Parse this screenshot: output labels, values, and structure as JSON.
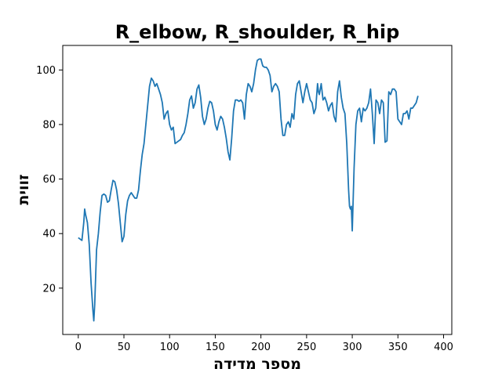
{
  "chart_data": {
    "type": "line",
    "title": "R_elbow, R_shoulder, R_hip",
    "xlabel": "מספר מדידה",
    "ylabel": "זווית",
    "xlim": [
      -17,
      409
    ],
    "ylim": [
      3,
      109
    ],
    "x_ticks": [
      0,
      50,
      100,
      150,
      200,
      250,
      300,
      350,
      400
    ],
    "y_ticks": [
      20,
      40,
      60,
      80,
      100
    ],
    "grid": false,
    "line_color": "#1f77b4",
    "series": [
      {
        "points": [
          [
            0,
            38.5
          ],
          [
            2,
            38
          ],
          [
            4,
            37.5
          ],
          [
            6,
            44
          ],
          [
            7,
            49
          ],
          [
            8,
            47
          ],
          [
            10,
            44
          ],
          [
            12,
            36
          ],
          [
            14,
            22
          ],
          [
            16,
            12
          ],
          [
            17,
            8
          ],
          [
            18,
            14
          ],
          [
            20,
            34
          ],
          [
            22,
            40
          ],
          [
            24,
            48
          ],
          [
            26,
            54
          ],
          [
            28,
            54.5
          ],
          [
            30,
            54
          ],
          [
            32,
            51.5
          ],
          [
            34,
            52
          ],
          [
            36,
            56
          ],
          [
            38,
            59.5
          ],
          [
            40,
            59
          ],
          [
            42,
            56
          ],
          [
            44,
            51
          ],
          [
            46,
            44
          ],
          [
            48,
            37
          ],
          [
            50,
            39
          ],
          [
            52,
            47
          ],
          [
            54,
            52
          ],
          [
            56,
            54
          ],
          [
            58,
            55
          ],
          [
            60,
            54
          ],
          [
            62,
            53
          ],
          [
            64,
            53
          ],
          [
            66,
            56
          ],
          [
            68,
            63
          ],
          [
            70,
            69
          ],
          [
            72,
            73
          ],
          [
            74,
            80
          ],
          [
            76,
            87
          ],
          [
            78,
            94
          ],
          [
            80,
            97
          ],
          [
            82,
            96
          ],
          [
            84,
            94
          ],
          [
            86,
            95
          ],
          [
            88,
            93
          ],
          [
            90,
            91
          ],
          [
            92,
            88
          ],
          [
            94,
            82
          ],
          [
            96,
            84
          ],
          [
            98,
            85
          ],
          [
            100,
            80
          ],
          [
            102,
            78
          ],
          [
            104,
            79
          ],
          [
            106,
            73
          ],
          [
            108,
            73.5
          ],
          [
            110,
            74
          ],
          [
            112,
            74.5
          ],
          [
            114,
            76
          ],
          [
            116,
            77
          ],
          [
            118,
            80
          ],
          [
            120,
            84
          ],
          [
            122,
            89
          ],
          [
            124,
            90.5
          ],
          [
            126,
            86
          ],
          [
            128,
            88
          ],
          [
            130,
            93
          ],
          [
            132,
            94.5
          ],
          [
            134,
            90
          ],
          [
            136,
            83
          ],
          [
            138,
            80
          ],
          [
            140,
            82
          ],
          [
            142,
            86
          ],
          [
            144,
            88.5
          ],
          [
            146,
            88
          ],
          [
            148,
            85
          ],
          [
            150,
            80
          ],
          [
            152,
            78
          ],
          [
            154,
            81
          ],
          [
            156,
            83
          ],
          [
            158,
            82
          ],
          [
            160,
            79
          ],
          [
            162,
            75
          ],
          [
            164,
            70
          ],
          [
            166,
            67
          ],
          [
            168,
            75
          ],
          [
            170,
            85
          ],
          [
            172,
            89
          ],
          [
            174,
            89
          ],
          [
            176,
            88.5
          ],
          [
            178,
            89
          ],
          [
            180,
            88
          ],
          [
            182,
            82
          ],
          [
            184,
            91
          ],
          [
            186,
            95
          ],
          [
            188,
            94
          ],
          [
            190,
            92
          ],
          [
            192,
            95
          ],
          [
            194,
            100
          ],
          [
            196,
            103.5
          ],
          [
            198,
            104
          ],
          [
            200,
            104
          ],
          [
            202,
            101.5
          ],
          [
            204,
            101
          ],
          [
            206,
            101
          ],
          [
            208,
            100
          ],
          [
            210,
            98
          ],
          [
            212,
            92
          ],
          [
            214,
            94
          ],
          [
            216,
            95
          ],
          [
            218,
            94
          ],
          [
            220,
            92
          ],
          [
            222,
            82
          ],
          [
            224,
            76
          ],
          [
            226,
            76
          ],
          [
            228,
            80
          ],
          [
            230,
            81
          ],
          [
            232,
            79
          ],
          [
            234,
            84
          ],
          [
            236,
            82
          ],
          [
            238,
            91
          ],
          [
            240,
            95
          ],
          [
            242,
            96
          ],
          [
            244,
            92
          ],
          [
            246,
            88
          ],
          [
            248,
            92
          ],
          [
            250,
            95
          ],
          [
            252,
            92
          ],
          [
            254,
            89
          ],
          [
            256,
            88
          ],
          [
            258,
            84
          ],
          [
            260,
            86
          ],
          [
            262,
            95
          ],
          [
            263,
            92
          ],
          [
            264,
            91
          ],
          [
            266,
            95
          ],
          [
            268,
            89
          ],
          [
            270,
            90
          ],
          [
            272,
            88
          ],
          [
            274,
            85
          ],
          [
            276,
            87
          ],
          [
            278,
            88
          ],
          [
            280,
            83
          ],
          [
            282,
            81
          ],
          [
            284,
            92
          ],
          [
            286,
            96
          ],
          [
            288,
            90
          ],
          [
            290,
            86
          ],
          [
            292,
            84
          ],
          [
            294,
            73
          ],
          [
            296,
            56
          ],
          [
            297,
            50
          ],
          [
            298,
            49
          ],
          [
            299,
            50
          ],
          [
            300,
            41
          ],
          [
            302,
            64
          ],
          [
            304,
            80
          ],
          [
            306,
            85
          ],
          [
            308,
            86
          ],
          [
            310,
            81
          ],
          [
            312,
            86
          ],
          [
            314,
            85
          ],
          [
            316,
            86
          ],
          [
            318,
            88
          ],
          [
            320,
            93
          ],
          [
            322,
            84
          ],
          [
            324,
            73
          ],
          [
            326,
            89
          ],
          [
            328,
            88
          ],
          [
            330,
            84
          ],
          [
            332,
            89
          ],
          [
            334,
            88
          ],
          [
            336,
            73.5
          ],
          [
            338,
            74
          ],
          [
            340,
            92
          ],
          [
            342,
            91
          ],
          [
            344,
            93
          ],
          [
            346,
            93
          ],
          [
            348,
            92
          ],
          [
            350,
            82
          ],
          [
            352,
            81
          ],
          [
            354,
            80
          ],
          [
            356,
            84
          ],
          [
            358,
            84
          ],
          [
            360,
            85
          ],
          [
            362,
            82
          ],
          [
            364,
            86
          ],
          [
            366,
            86
          ],
          [
            368,
            87
          ],
          [
            370,
            88
          ],
          [
            372,
            90.5
          ]
        ]
      }
    ]
  }
}
